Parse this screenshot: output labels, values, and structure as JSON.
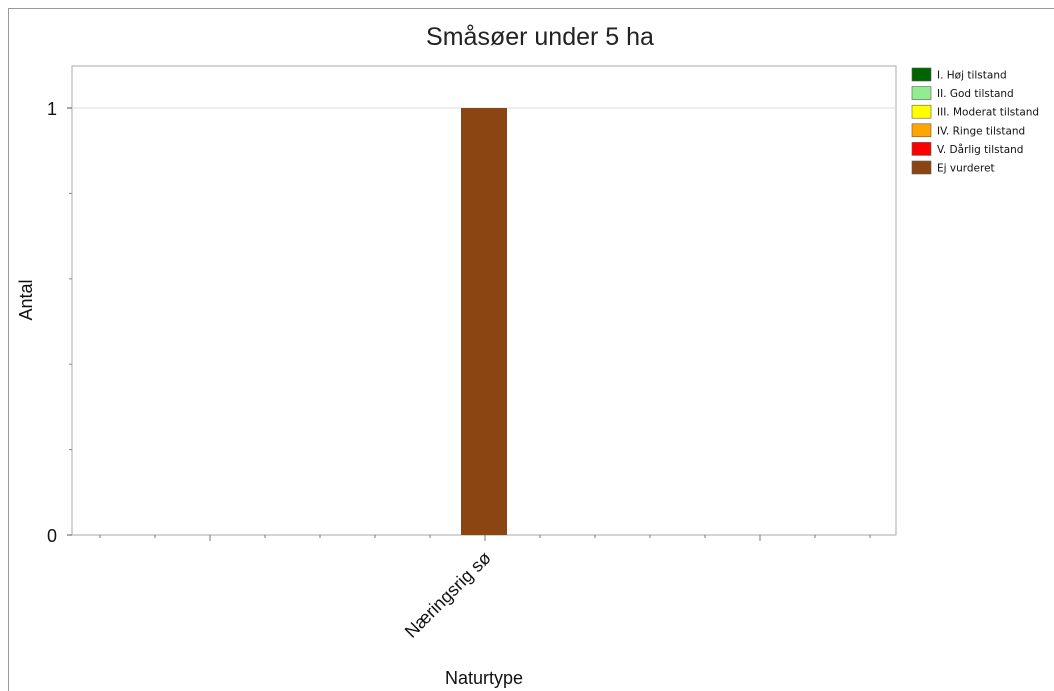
{
  "chart_data": {
    "type": "bar",
    "title": "Småsøer under 5 ha",
    "xlabel": "Naturtype",
    "ylabel": "Antal",
    "categories": [
      "Næringsrig sø"
    ],
    "ylim": [
      0,
      1
    ],
    "yticks": [
      0,
      1
    ],
    "grid": true,
    "legend_position": "right",
    "series": [
      {
        "name": "I. Høj tilstand",
        "color": "#006400",
        "values": [
          0
        ]
      },
      {
        "name": "II. God tilstand",
        "color": "#90EE90",
        "values": [
          0
        ]
      },
      {
        "name": "III. Moderat tilstand",
        "color": "#FFFF00",
        "values": [
          0
        ]
      },
      {
        "name": "IV. Ringe tilstand",
        "color": "#FFA500",
        "values": [
          0
        ]
      },
      {
        "name": "V. Dårlig tilstand",
        "color": "#FF0000",
        "values": [
          0
        ]
      },
      {
        "name": "Ej vurderet",
        "color": "#8B4513",
        "values": [
          1
        ]
      }
    ]
  }
}
